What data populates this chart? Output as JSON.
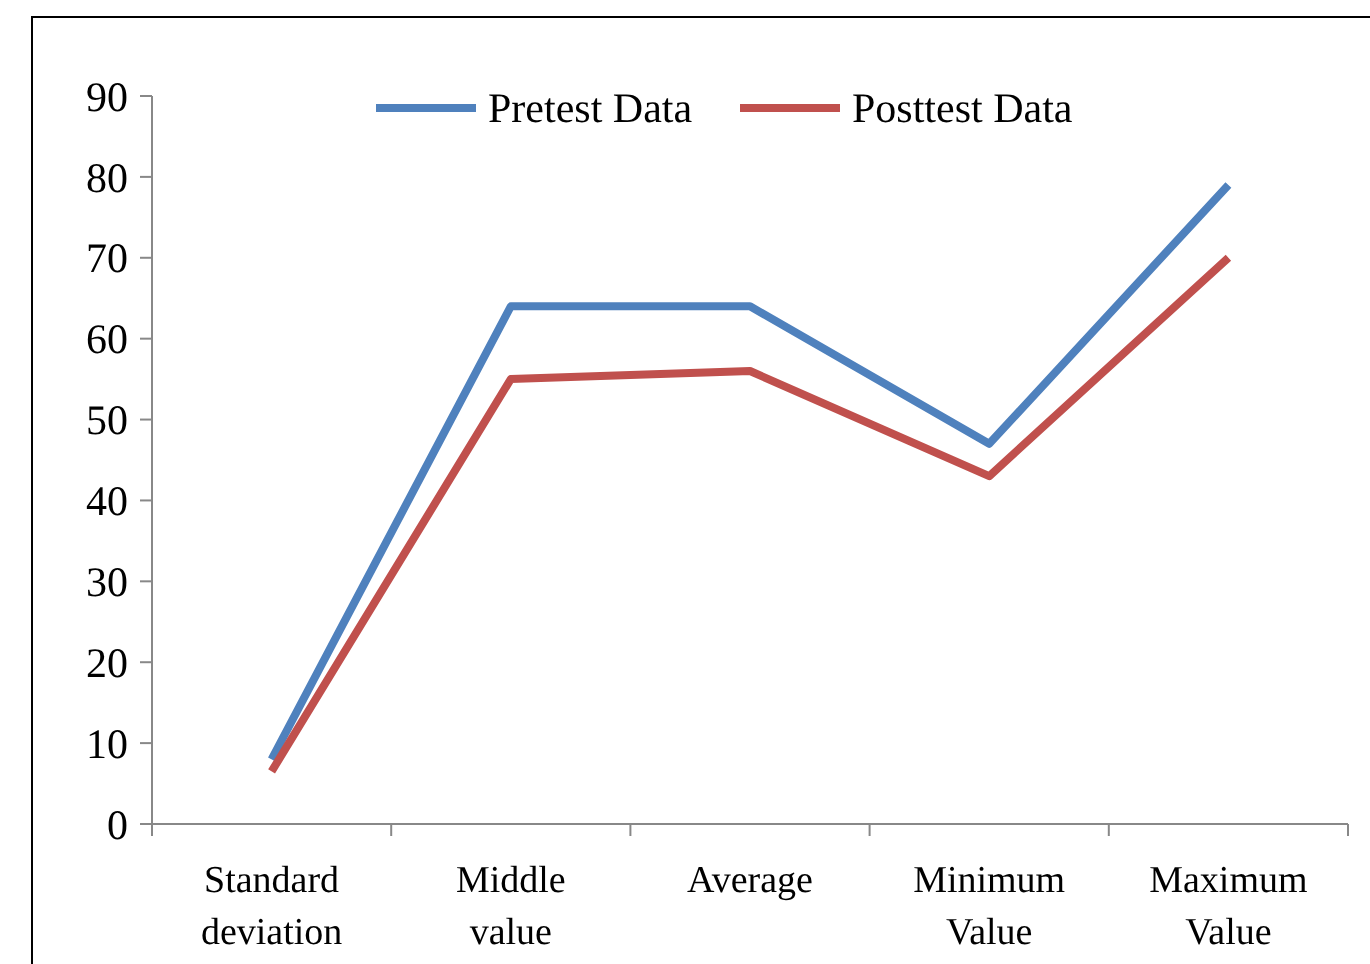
{
  "chart_data": {
    "type": "line",
    "categories": [
      "Standard deviation",
      "Middle value",
      "Average",
      "Minimum Value",
      "Maximum Value"
    ],
    "series": [
      {
        "name": "Pretest Data",
        "color": "#4f81bd",
        "values": [
          8,
          64,
          64,
          47,
          79
        ]
      },
      {
        "name": "Posttest Data",
        "color": "#c0504d",
        "values": [
          6.5,
          55,
          56,
          43,
          70
        ]
      }
    ],
    "ylim": [
      0,
      90
    ],
    "yticks": [
      0,
      10,
      20,
      30,
      40,
      50,
      60,
      70,
      80,
      90
    ],
    "legend": "top",
    "grid": false,
    "marker": "none",
    "line_style": "solid"
  }
}
